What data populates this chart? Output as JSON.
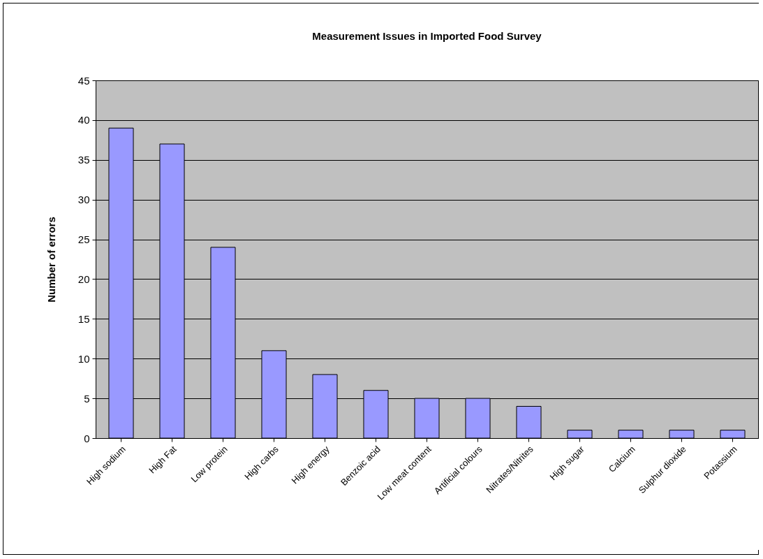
{
  "chart_data": {
    "type": "bar",
    "title": "Measurement Issues in Imported Food Survey",
    "ylabel": "Number of errors",
    "categories": [
      "High sodium",
      "High Fat",
      "Low protein",
      "High carbs",
      "High energy",
      "Benzoic acid",
      "Low meat content",
      "Artificial colours",
      "Nitrates/Nitrites",
      "High sugar",
      "Calcium",
      "Sulphur dioxide",
      "Potassium"
    ],
    "values": [
      39,
      37,
      24,
      11,
      8,
      6,
      5,
      5,
      4,
      1,
      1,
      1,
      1
    ],
    "color": "#9999ff",
    "ylim": [
      0,
      45
    ],
    "yticks": [
      0,
      5,
      10,
      15,
      20,
      25,
      30,
      35,
      40,
      45
    ],
    "grid": "y"
  }
}
